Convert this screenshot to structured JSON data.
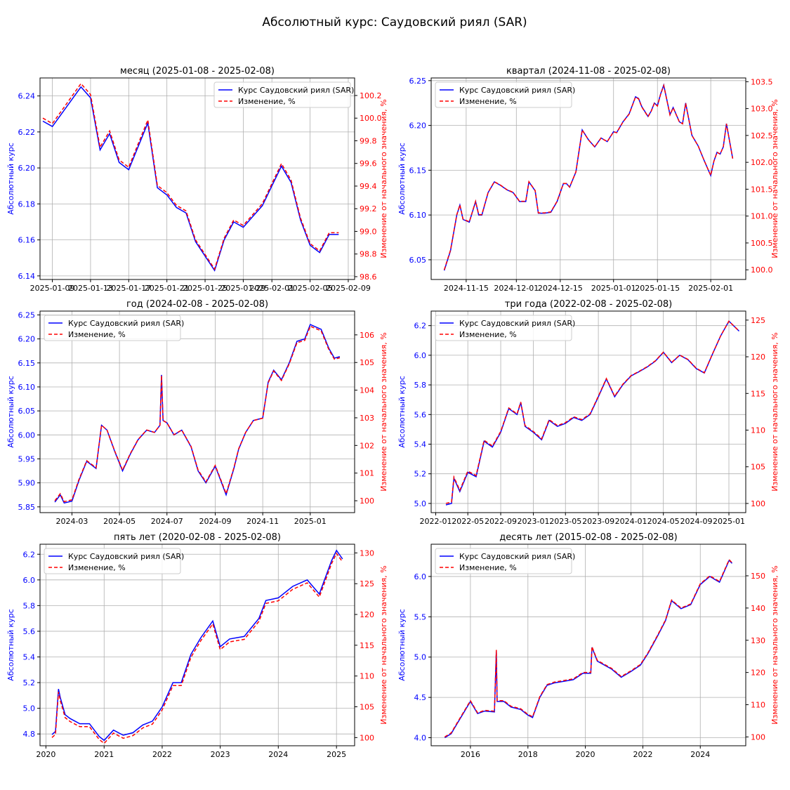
{
  "figure": {
    "title": "Абсолютный курс: Саудовский риял (SAR)"
  },
  "colors": {
    "left": "#0000ff",
    "right": "#ff0000",
    "grid": "#b0b0b0"
  },
  "chart_data": [
    {
      "type": "line",
      "title": "месяц (2025-01-08 - 2025-02-08)",
      "ylabel": "Абсолютный курс",
      "y2label": "Изменение от начального значения, %",
      "legend": [
        "Курс Саудовский риял (SAR)",
        "Изменение, %"
      ],
      "legend_position": "top-right",
      "grid": true,
      "ylim": [
        6.138,
        6.25
      ],
      "y2lim": [
        98.575,
        100.355
      ],
      "yticks": [
        6.14,
        6.16,
        6.18,
        6.2,
        6.22,
        6.24
      ],
      "y2ticks": [
        98.6,
        98.8,
        99.0,
        99.2,
        99.4,
        99.6,
        99.8,
        100.0,
        100.2
      ],
      "xlim": [
        "2025-01-07T17:00",
        "2025-02-09T16:00"
      ],
      "xticks": [
        "2025-01-09",
        "2025-01-13",
        "2025-01-17",
        "2025-01-21",
        "2025-01-25",
        "2025-01-29",
        "2025-02-01",
        "2025-02-05",
        "2025-02-09"
      ],
      "tick_dates": [
        "2025-01-09",
        "2025-01-13",
        "2025-01-17",
        "2025-01-21",
        "2025-01-25",
        "2025-01-29",
        "2025-02-01",
        "2025-02-05",
        "2025-02-09"
      ],
      "x": [
        "2025-01-08",
        "2025-01-09",
        "2025-01-12",
        "2025-01-13",
        "2025-01-14",
        "2025-01-15",
        "2025-01-16",
        "2025-01-17",
        "2025-01-19",
        "2025-01-20",
        "2025-01-21",
        "2025-01-22",
        "2025-01-23",
        "2025-01-24",
        "2025-01-26",
        "2025-01-27",
        "2025-01-28",
        "2025-01-29",
        "2025-01-30",
        "2025-01-31",
        "2025-02-01",
        "2025-02-02",
        "2025-02-03",
        "2025-02-04",
        "2025-02-05",
        "2025-02-06",
        "2025-02-07",
        "2025-02-08"
      ],
      "values": [
        6.226,
        6.223,
        6.245,
        6.239,
        6.21,
        6.219,
        6.203,
        6.199,
        6.225,
        6.189,
        6.185,
        6.178,
        6.175,
        6.159,
        6.143,
        6.16,
        6.17,
        6.167,
        6.173,
        6.179,
        6.19,
        6.201,
        6.192,
        6.171,
        6.157,
        6.153,
        6.163,
        6.163
      ],
      "base": 6.226
    },
    {
      "type": "line",
      "title": "квартал (2024-11-08 - 2025-02-08)",
      "ylabel": "Абсолютный курс",
      "y2label": "Изменение от начального значения, %",
      "legend": [
        "Курс Саудовский риял (SAR)",
        "Изменение, %"
      ],
      "legend_position": "top-left",
      "grid": true,
      "ylim": [
        6.028,
        6.253
      ],
      "y2lim": [
        99.82,
        103.57
      ],
      "yticks": [
        6.05,
        6.1,
        6.15,
        6.2,
        6.25
      ],
      "y2ticks": [
        100.0,
        100.5,
        101.0,
        101.5,
        102.0,
        102.5,
        103.0,
        103.5
      ],
      "xlim": [
        "2024-11-03T20:00",
        "2025-02-12T04:00"
      ],
      "xticks": [
        "2024-11-15",
        "2024-12-01",
        "2024-12-15",
        "2025-01-01",
        "2025-01-15",
        "2025-02-01"
      ],
      "tick_dates": [
        "2024-11-15",
        "2024-12-01",
        "2024-12-15",
        "2025-01-01",
        "2025-01-15",
        "2025-02-01"
      ],
      "x": [
        "2024-11-08",
        "2024-11-10",
        "2024-11-12",
        "2024-11-13",
        "2024-11-14",
        "2024-11-16",
        "2024-11-18",
        "2024-11-19",
        "2024-11-20",
        "2024-11-22",
        "2024-11-24",
        "2024-11-26",
        "2024-11-28",
        "2024-11-30",
        "2024-12-01",
        "2024-12-02",
        "2024-12-04",
        "2024-12-05",
        "2024-12-07",
        "2024-12-08",
        "2024-12-10",
        "2024-12-12",
        "2024-12-14",
        "2024-12-16",
        "2024-12-17",
        "2024-12-18",
        "2024-12-20",
        "2024-12-22",
        "2024-12-24",
        "2024-12-26",
        "2024-12-28",
        "2024-12-30",
        "2025-01-01",
        "2025-01-02",
        "2025-01-04",
        "2025-01-06",
        "2025-01-08",
        "2025-01-09",
        "2025-01-10",
        "2025-01-12",
        "2025-01-13",
        "2025-01-14",
        "2025-01-15",
        "2025-01-16",
        "2025-01-17",
        "2025-01-19",
        "2025-01-20",
        "2025-01-22",
        "2025-01-23",
        "2025-01-24",
        "2025-01-26",
        "2025-01-27",
        "2025-01-28",
        "2025-01-30",
        "2025-02-01",
        "2025-02-02",
        "2025-02-03",
        "2025-02-04",
        "2025-02-05",
        "2025-02-06",
        "2025-02-08"
      ],
      "values": [
        6.038,
        6.06,
        6.1,
        6.111,
        6.095,
        6.092,
        6.115,
        6.1,
        6.1,
        6.125,
        6.137,
        6.133,
        6.128,
        6.125,
        6.12,
        6.115,
        6.115,
        6.137,
        6.127,
        6.102,
        6.102,
        6.103,
        6.115,
        6.135,
        6.135,
        6.131,
        6.148,
        6.195,
        6.184,
        6.176,
        6.186,
        6.182,
        6.193,
        6.192,
        6.204,
        6.213,
        6.232,
        6.23,
        6.221,
        6.21,
        6.216,
        6.225,
        6.222,
        6.235,
        6.245,
        6.212,
        6.22,
        6.204,
        6.202,
        6.225,
        6.189,
        6.183,
        6.177,
        6.16,
        6.144,
        6.16,
        6.17,
        6.168,
        6.176,
        6.202,
        6.163
      ],
      "base": 6.038
    },
    {
      "type": "line",
      "title": "год (2024-02-08 - 2025-02-08)",
      "ylabel": "Абсолютный курс",
      "y2label": "Изменение от начального значения, %",
      "legend": [
        "Курс Саудовский риял (SAR)",
        "Изменение, %"
      ],
      "legend_position": "top-left",
      "grid": true,
      "ylim": [
        5.838,
        6.258
      ],
      "y2lim": [
        99.57,
        106.86
      ],
      "yticks": [
        5.85,
        5.9,
        5.95,
        6.0,
        6.05,
        6.1,
        6.15,
        6.2,
        6.25
      ],
      "y2ticks": [
        100,
        101,
        102,
        103,
        104,
        105,
        106
      ],
      "xlim": [
        "2024-01-20",
        "2025-02-27"
      ],
      "xticks": [
        "2024-03",
        "2024-05",
        "2024-07",
        "2024-09",
        "2024-11",
        "2025-01"
      ],
      "tick_dates": [
        "2024-03-01",
        "2024-05-01",
        "2024-07-01",
        "2024-09-01",
        "2024-11-01",
        "2025-01-01"
      ],
      "x": [
        "2024-02-08",
        "2024-02-15",
        "2024-02-20",
        "2024-03-01",
        "2024-03-10",
        "2024-03-20",
        "2024-04-01",
        "2024-04-08",
        "2024-04-15",
        "2024-04-25",
        "2024-05-05",
        "2024-05-15",
        "2024-05-25",
        "2024-06-05",
        "2024-06-15",
        "2024-06-22",
        "2024-06-24",
        "2024-06-26",
        "2024-07-01",
        "2024-07-10",
        "2024-07-20",
        "2024-08-01",
        "2024-08-10",
        "2024-08-20",
        "2024-09-01",
        "2024-09-08",
        "2024-09-15",
        "2024-09-25",
        "2024-10-01",
        "2024-10-10",
        "2024-10-20",
        "2024-11-01",
        "2024-11-08",
        "2024-11-15",
        "2024-11-25",
        "2024-12-05",
        "2024-12-15",
        "2024-12-25",
        "2025-01-01",
        "2025-01-08",
        "2025-01-15",
        "2025-01-25",
        "2025-02-01",
        "2025-02-08"
      ],
      "values": [
        5.86,
        5.875,
        5.858,
        5.862,
        5.905,
        5.945,
        5.93,
        6.02,
        6.01,
        5.965,
        5.925,
        5.96,
        5.99,
        6.01,
        6.005,
        6.02,
        6.125,
        6.03,
        6.025,
        6.0,
        6.01,
        5.975,
        5.925,
        5.9,
        5.935,
        5.905,
        5.875,
        5.93,
        5.97,
        6.005,
        6.03,
        6.035,
        6.11,
        6.135,
        6.115,
        6.15,
        6.195,
        6.2,
        6.23,
        6.225,
        6.22,
        6.18,
        6.16,
        6.163
      ],
      "base": 5.86
    },
    {
      "type": "line",
      "title": "три года (2022-02-08 - 2025-02-08)",
      "ylabel": "Абсолютный курс",
      "y2label": "Изменение от начального значения, %",
      "legend": [
        "Курс Саудовский риял (SAR)",
        "Изменение, %"
      ],
      "legend_position": "top-left",
      "grid": true,
      "ylim": [
        4.938,
        6.298
      ],
      "y2lim": [
        98.75,
        126.23
      ],
      "yticks": [
        5.0,
        5.2,
        5.4,
        5.6,
        5.8,
        6.0,
        6.2
      ],
      "y2ticks": [
        100,
        105,
        110,
        115,
        120,
        125
      ],
      "xlim": [
        "2021-12-15",
        "2025-03-05"
      ],
      "xticks": [
        "2022-01",
        "2022-05",
        "2022-09",
        "2023-01",
        "2023-05",
        "2023-09",
        "2024-01",
        "2024-05",
        "2024-09",
        "2025-01"
      ],
      "tick_dates": [
        "2022-01-01",
        "2022-05-01",
        "2022-09-01",
        "2023-01-01",
        "2023-05-01",
        "2023-09-01",
        "2024-01-01",
        "2024-05-01",
        "2024-09-01",
        "2025-01-01"
      ],
      "x": [
        "2022-02-08",
        "2022-03-01",
        "2022-03-10",
        "2022-04-01",
        "2022-05-01",
        "2022-06-01",
        "2022-07-01",
        "2022-08-01",
        "2022-09-01",
        "2022-10-01",
        "2022-11-01",
        "2022-11-15",
        "2022-12-01",
        "2023-01-01",
        "2023-02-01",
        "2023-03-01",
        "2023-04-01",
        "2023-05-01",
        "2023-06-01",
        "2023-07-01",
        "2023-08-01",
        "2023-09-01",
        "2023-10-01",
        "2023-11-01",
        "2023-12-01",
        "2024-01-01",
        "2024-02-01",
        "2024-03-01",
        "2024-04-01",
        "2024-05-01",
        "2024-06-01",
        "2024-07-01",
        "2024-08-01",
        "2024-09-01",
        "2024-10-01",
        "2024-11-01",
        "2024-12-01",
        "2025-01-01",
        "2025-02-08"
      ],
      "values": [
        4.99,
        5.0,
        5.17,
        5.08,
        5.21,
        5.18,
        5.42,
        5.38,
        5.48,
        5.64,
        5.6,
        5.68,
        5.52,
        5.48,
        5.43,
        5.56,
        5.52,
        5.54,
        5.58,
        5.56,
        5.6,
        5.72,
        5.84,
        5.72,
        5.8,
        5.86,
        5.89,
        5.92,
        5.96,
        6.02,
        5.95,
        6.0,
        5.97,
        5.91,
        5.88,
        6.01,
        6.13,
        6.23,
        6.163
      ],
      "base": 4.99
    },
    {
      "type": "line",
      "title": "пять лет (2020-02-08 - 2025-02-08)",
      "ylabel": "Абсолютный курс",
      "y2label": "Изменение от начального значения, %",
      "legend": [
        "Курс Саудовский риял (SAR)",
        "Изменение, %"
      ],
      "legend_position": "top-left",
      "grid": true,
      "ylim": [
        4.708,
        6.278
      ],
      "y2lim": [
        98.67,
        131.41
      ],
      "yticks": [
        4.8,
        5.0,
        5.2,
        5.4,
        5.6,
        5.8,
        6.0,
        6.2
      ],
      "y2ticks": [
        100,
        105,
        110,
        115,
        120,
        125,
        130
      ],
      "xlim": [
        "2019-11-25",
        "2025-04-25"
      ],
      "xticks": [
        "2020",
        "2021",
        "2022",
        "2023",
        "2024",
        "2025"
      ],
      "tick_dates": [
        "2020-01-01",
        "2021-01-01",
        "2022-01-01",
        "2023-01-01",
        "2024-01-01",
        "2025-01-01"
      ],
      "x": [
        "2020-02-08",
        "2020-03-01",
        "2020-03-20",
        "2020-04-01",
        "2020-05-01",
        "2020-06-01",
        "2020-08-01",
        "2020-10-01",
        "2020-12-01",
        "2021-01-01",
        "2021-03-01",
        "2021-05-01",
        "2021-07-01",
        "2021-09-01",
        "2021-11-01",
        "2022-01-01",
        "2022-03-10",
        "2022-05-01",
        "2022-07-01",
        "2022-09-01",
        "2022-11-15",
        "2023-01-01",
        "2023-03-01",
        "2023-06-01",
        "2023-09-01",
        "2023-10-15",
        "2024-01-01",
        "2024-04-01",
        "2024-07-01",
        "2024-09-15",
        "2024-12-01",
        "2025-01-01",
        "2025-02-08"
      ],
      "values": [
        4.795,
        4.82,
        5.15,
        5.08,
        4.95,
        4.92,
        4.88,
        4.88,
        4.78,
        4.75,
        4.83,
        4.79,
        4.81,
        4.87,
        4.9,
        5.01,
        5.2,
        5.2,
        5.42,
        5.55,
        5.68,
        5.48,
        5.54,
        5.56,
        5.7,
        5.84,
        5.86,
        5.95,
        6.0,
        5.89,
        6.15,
        6.23,
        6.163
      ],
      "base": 4.795
    },
    {
      "type": "line",
      "title": "десять лет (2015-02-08 - 2025-02-08)",
      "ylabel": "Абсолютный курс",
      "y2label": "Изменение от начального значения, %",
      "legend": [
        "Курс Саудовский риял (SAR)",
        "Изменение, %"
      ],
      "legend_position": "top-left",
      "grid": true,
      "ylim": [
        3.9,
        6.4
      ],
      "y2lim": [
        97.26,
        159.8
      ],
      "yticks": [
        4.0,
        4.5,
        5.0,
        5.5,
        6.0
      ],
      "y2ticks": [
        100,
        110,
        120,
        130,
        140,
        150
      ],
      "xlim": [
        "2014-08-20",
        "2025-08-01"
      ],
      "xticks": [
        "2016",
        "2018",
        "2020",
        "2022",
        "2024"
      ],
      "tick_dates": [
        "2016-01-01",
        "2018-01-01",
        "2020-01-01",
        "2022-01-01",
        "2024-01-01"
      ],
      "x": [
        "2015-02-08",
        "2015-05-01",
        "2015-07-01",
        "2015-10-01",
        "2016-01-01",
        "2016-04-01",
        "2016-07-01",
        "2016-11-01",
        "2016-11-25",
        "2016-12-05",
        "2017-03-01",
        "2017-06-01",
        "2017-10-01",
        "2018-01-01",
        "2018-03-01",
        "2018-06-01",
        "2018-09-01",
        "2018-12-01",
        "2019-04-01",
        "2019-08-01",
        "2019-12-01",
        "2020-03-10",
        "2020-03-25",
        "2020-06-01",
        "2020-09-01",
        "2020-12-01",
        "2021-04-01",
        "2021-08-01",
        "2021-12-01",
        "2022-03-10",
        "2022-07-01",
        "2022-10-15",
        "2023-01-01",
        "2023-05-01",
        "2023-09-01",
        "2024-01-01",
        "2024-05-01",
        "2024-09-01",
        "2025-01-01",
        "2025-02-08"
      ],
      "values": [
        4.0,
        4.05,
        4.15,
        4.3,
        4.45,
        4.3,
        4.33,
        4.32,
        5.08,
        4.45,
        4.45,
        4.38,
        4.35,
        4.28,
        4.25,
        4.5,
        4.65,
        4.68,
        4.7,
        4.72,
        4.8,
        4.8,
        5.12,
        4.95,
        4.9,
        4.85,
        4.75,
        4.82,
        4.9,
        5.05,
        5.25,
        5.45,
        5.7,
        5.6,
        5.65,
        5.9,
        6.0,
        5.93,
        6.2,
        6.163
      ],
      "base": 4.0
    }
  ]
}
